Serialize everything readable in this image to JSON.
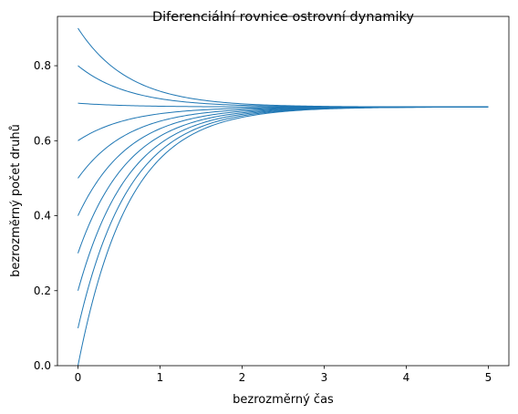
{
  "chart_data": {
    "type": "line",
    "title": "Diferenciální rovnice ostrovní dynamiky",
    "xlabel": "bezrozměrný čas",
    "ylabel": "bezrozměrný počet druhů",
    "xlim": [
      -0.25,
      5.25
    ],
    "ylim": [
      0,
      0.9315
    ],
    "xticks": [
      0,
      1,
      2,
      3,
      4,
      5
    ],
    "xtick_labels": [
      "0",
      "1",
      "2",
      "3",
      "4",
      "5"
    ],
    "yticks": [
      0,
      0.2,
      0.4,
      0.6,
      0.8
    ],
    "ytick_labels": [
      "0.0",
      "0.2",
      "0.4",
      "0.6",
      "0.8"
    ],
    "grid": false,
    "legend": "none",
    "line_color": "#1f77b4",
    "x_range": [
      0,
      5
    ],
    "equilibrium": 0.69,
    "rate": 1.61,
    "series": [
      {
        "initial": 0.0
      },
      {
        "initial": 0.1
      },
      {
        "initial": 0.2
      },
      {
        "initial": 0.3
      },
      {
        "initial": 0.4
      },
      {
        "initial": 0.5
      },
      {
        "initial": 0.6
      },
      {
        "initial": 0.7
      },
      {
        "initial": 0.8
      },
      {
        "initial": 0.9
      }
    ]
  }
}
